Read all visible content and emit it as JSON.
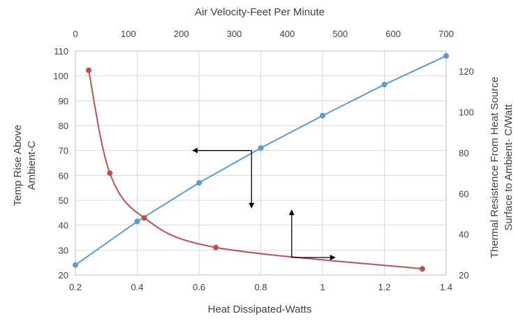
{
  "chart_data": {
    "type": "line",
    "xlabel_bottom": "Heat Dissipated-Watts",
    "xlabel_top": "Air Velocity-Feet Per Minute",
    "ylabel_left": [
      "Temp Rise Above",
      "Ambient-C"
    ],
    "ylabel_right": [
      "Thermal Resistence From Heat Source",
      "Surface to Ambient- C/Watt"
    ],
    "x_bottom": {
      "min": 0.2,
      "max": 1.4,
      "ticks": [
        "0.2",
        "0.4",
        "0.6",
        "0.8",
        "1",
        "1.2",
        "1.4"
      ],
      "tick_values": [
        0.2,
        0.4,
        0.6,
        0.8,
        1.0,
        1.2,
        1.4
      ]
    },
    "x_top": {
      "min": 0,
      "max": 700,
      "ticks": [
        "0",
        "100",
        "200",
        "300",
        "400",
        "500",
        "600",
        "700"
      ],
      "tick_values": [
        0,
        100,
        200,
        300,
        400,
        500,
        600,
        700
      ]
    },
    "y_left": {
      "min": 20,
      "max": 110,
      "ticks": [
        "20",
        "30",
        "40",
        "50",
        "60",
        "70",
        "80",
        "90",
        "100",
        "110"
      ],
      "tick_values": [
        20,
        30,
        40,
        50,
        60,
        70,
        80,
        90,
        100,
        110
      ]
    },
    "y_right": {
      "min": 20,
      "max": 130,
      "ticks": [
        "20",
        "40",
        "60",
        "80",
        "100",
        "120"
      ],
      "tick_values": [
        20,
        40,
        60,
        80,
        100,
        120
      ]
    },
    "grid": true,
    "series": [
      {
        "axes": "bottom-left",
        "color": "#5b9bd5",
        "points": [
          [
            0.2,
            24
          ],
          [
            0.4,
            41.5
          ],
          [
            0.6,
            57
          ],
          [
            0.8,
            71
          ],
          [
            1.0,
            84
          ],
          [
            1.2,
            96.5
          ],
          [
            1.4,
            108
          ]
        ]
      },
      {
        "axes": "top-right",
        "color": "#c0504d",
        "points": [
          [
            25,
            120.5
          ],
          [
            65,
            70
          ],
          [
            130,
            48
          ],
          [
            265,
            33.5
          ],
          [
            655,
            23
          ]
        ]
      }
    ],
    "annotations": [
      {
        "type": "arrow-pair",
        "from": [
          0.77,
          70
        ],
        "to_left": [
          0.58,
          70
        ],
        "to_down": [
          0.77,
          47
        ]
      },
      {
        "type": "arrow-pair",
        "from": [
          0.9,
          27
        ],
        "to_up": [
          0.9,
          46
        ],
        "to_right": [
          1.04,
          27
        ]
      }
    ]
  }
}
